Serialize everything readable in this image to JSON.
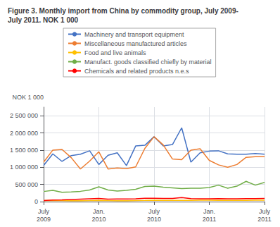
{
  "chart_data": {
    "type": "line",
    "title": "Figure 3. Monthly import from China by commodity group, July 2009-\nJuly 2011. NOK 1 000",
    "ylabel": "NOK 1 000",
    "categories": [
      "July\n2009",
      null,
      null,
      null,
      null,
      null,
      "Jan.\n2010",
      null,
      null,
      null,
      null,
      null,
      "July\n2010",
      null,
      null,
      null,
      null,
      null,
      "Jan.\n2011",
      null,
      null,
      null,
      null,
      null,
      "July\n2011"
    ],
    "series": [
      {
        "name": "Machinery and transport equipment",
        "color": "#4472C4",
        "values": [
          1050000,
          1390000,
          1170000,
          1340000,
          1380000,
          1480000,
          1080000,
          1350000,
          1420000,
          1050000,
          1620000,
          1640000,
          1890000,
          1620000,
          1660000,
          2150000,
          1150000,
          1420000,
          1470000,
          1480000,
          1390000,
          1380000,
          1380000,
          1400000,
          1380000
        ]
      },
      {
        "name": "Miscellaneous manufactured articles",
        "color": "#ED7D31",
        "values": [
          1150000,
          1500000,
          1520000,
          1280000,
          950000,
          1180000,
          1450000,
          950000,
          980000,
          960000,
          1010000,
          1550000,
          1890000,
          1650000,
          1240000,
          1220000,
          1500000,
          1540000,
          1200000,
          1070000,
          1000000,
          1080000,
          1290000,
          1310000,
          1310000
        ]
      },
      {
        "name": "Food and live animals",
        "color": "#FFC000",
        "values": [
          30000,
          35000,
          30000,
          25000,
          28000,
          30000,
          35000,
          30000,
          28000,
          28000,
          32000,
          35000,
          40000,
          38000,
          35000,
          35000,
          38000,
          40000,
          40000,
          35000,
          35000,
          38000,
          38000,
          40000,
          42000
        ]
      },
      {
        "name": "Manufact. goods classified chiefly by material",
        "color": "#70AD47",
        "values": [
          295000,
          330000,
          270000,
          280000,
          300000,
          340000,
          430000,
          340000,
          310000,
          330000,
          360000,
          440000,
          450000,
          420000,
          400000,
          380000,
          390000,
          390000,
          410000,
          480000,
          390000,
          450000,
          590000,
          480000,
          560000
        ]
      },
      {
        "name": "Chemicals and related products n.e.s",
        "color": "#FF0000",
        "values": [
          30000,
          45000,
          50000,
          60000,
          70000,
          80000,
          90000,
          70000,
          75000,
          75000,
          80000,
          100000,
          100000,
          90000,
          90000,
          120000,
          85000,
          80000,
          80000,
          85000,
          80000,
          80000,
          85000,
          85000,
          90000
        ]
      }
    ],
    "ylim": [
      0,
      2750000
    ],
    "yticks": [
      0,
      {
        "value": 500000,
        "label": "500 000"
      },
      {
        "value": 1000000,
        "label": "1 000 000"
      },
      {
        "value": 1500000,
        "label": "1 500 000"
      },
      {
        "value": 2000000,
        "label": "2 000 000"
      },
      {
        "value": 2500000,
        "label": "2 500 000"
      }
    ],
    "grid": true,
    "legend": "top"
  }
}
